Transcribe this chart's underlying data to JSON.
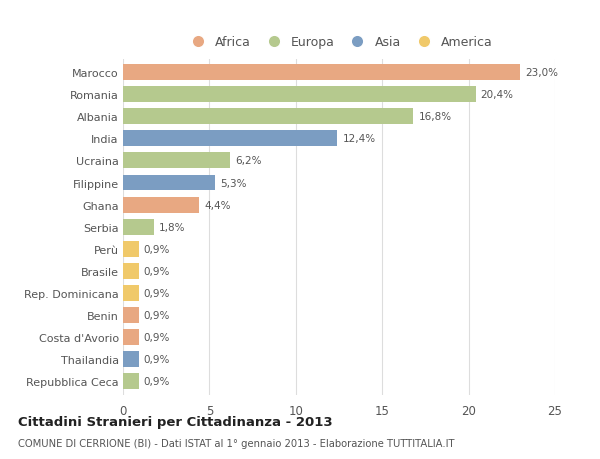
{
  "countries": [
    "Marocco",
    "Romania",
    "Albania",
    "India",
    "Ucraina",
    "Filippine",
    "Ghana",
    "Serbia",
    "Perù",
    "Brasile",
    "Rep. Dominicana",
    "Benin",
    "Costa d'Avorio",
    "Thailandia",
    "Repubblica Ceca"
  ],
  "values": [
    23.0,
    20.4,
    16.8,
    12.4,
    6.2,
    5.3,
    4.4,
    1.8,
    0.9,
    0.9,
    0.9,
    0.9,
    0.9,
    0.9,
    0.9
  ],
  "labels": [
    "23,0%",
    "20,4%",
    "16,8%",
    "12,4%",
    "6,2%",
    "5,3%",
    "4,4%",
    "1,8%",
    "0,9%",
    "0,9%",
    "0,9%",
    "0,9%",
    "0,9%",
    "0,9%",
    "0,9%"
  ],
  "continents": [
    "Africa",
    "Europa",
    "Europa",
    "Asia",
    "Europa",
    "Asia",
    "Africa",
    "Europa",
    "America",
    "America",
    "America",
    "Africa",
    "Africa",
    "Asia",
    "Europa"
  ],
  "continent_colors": {
    "Africa": "#E8A882",
    "Europa": "#B5C98E",
    "Asia": "#7B9DC2",
    "America": "#F0C96A"
  },
  "legend_order": [
    "Africa",
    "Europa",
    "Asia",
    "America"
  ],
  "title": "Cittadini Stranieri per Cittadinanza - 2013",
  "subtitle": "COMUNE DI CERRIONE (BI) - Dati ISTAT al 1° gennaio 2013 - Elaborazione TUTTITALIA.IT",
  "xlim": [
    0,
    25
  ],
  "xticks": [
    0,
    5,
    10,
    15,
    20,
    25
  ],
  "background_color": "#FFFFFF",
  "bar_height": 0.72,
  "grid_color": "#DDDDDD",
  "text_color": "#555555",
  "label_fontsize": 7.5,
  "ytick_fontsize": 8.0,
  "xtick_fontsize": 8.5
}
